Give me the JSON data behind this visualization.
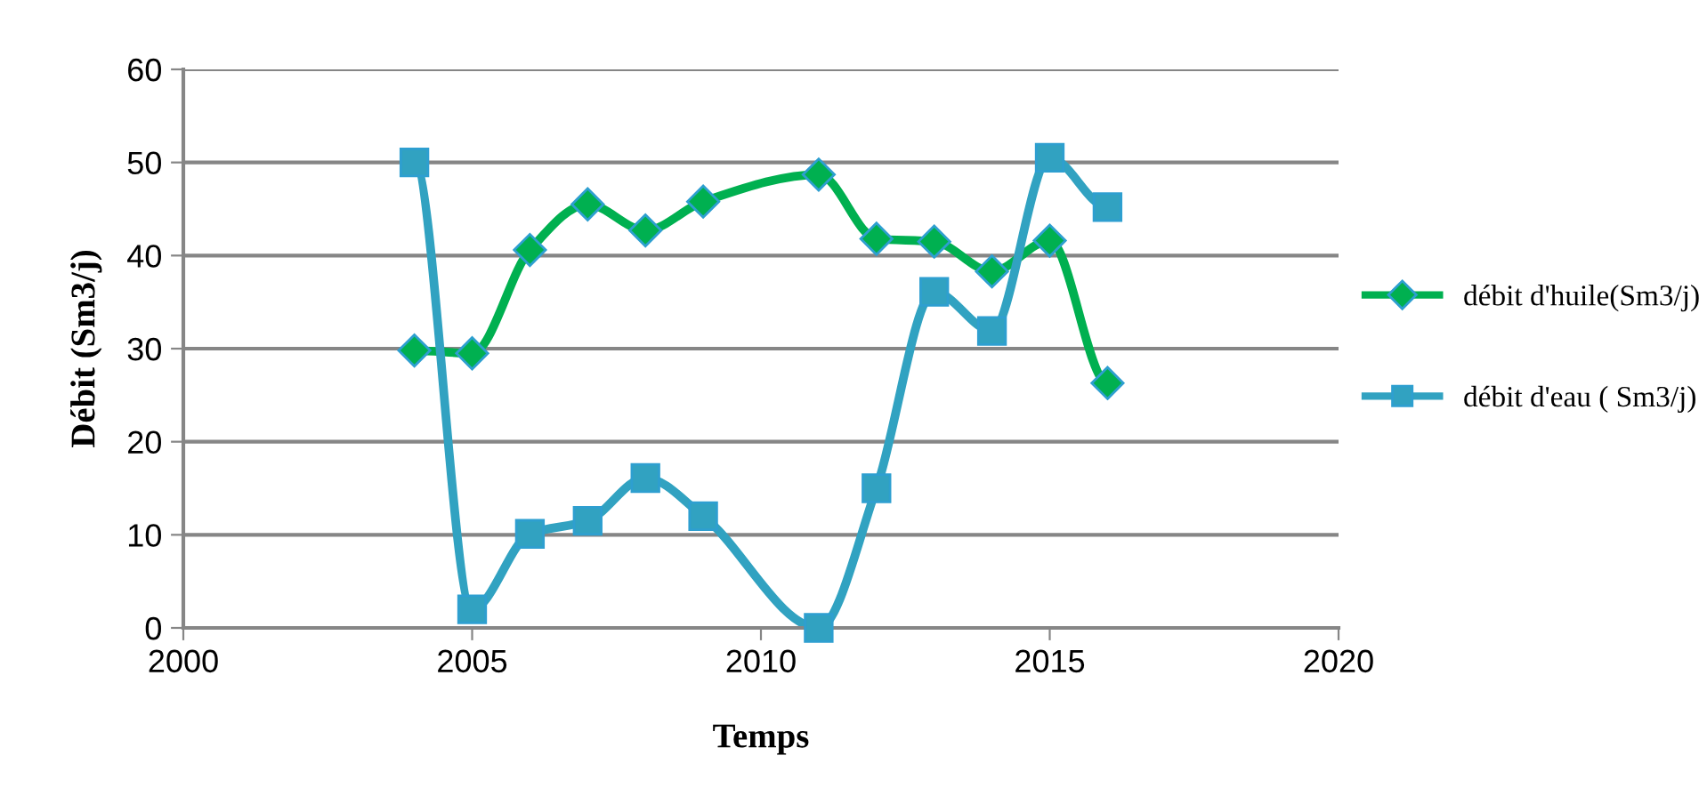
{
  "chart_data": {
    "type": "line",
    "xlabel": "Temps",
    "ylabel": "Débit (Sm3/j)",
    "xlim": [
      2000,
      2020
    ],
    "xticks": [
      2000,
      2005,
      2010,
      2015,
      2020
    ],
    "ylim": [
      0,
      60
    ],
    "yticks": [
      0,
      10,
      20,
      30,
      40,
      50,
      60
    ],
    "grid": "y",
    "legend": "right",
    "series": [
      {
        "name": "débit d'huile(Sm3/j)",
        "color": "#00b050",
        "marker": "diamond",
        "x": [
          2004,
          2005,
          2006,
          2007,
          2008,
          2009,
          2011,
          2012,
          2013,
          2014,
          2015,
          2016
        ],
        "values": [
          29.8,
          29.5,
          40.6,
          45.5,
          42.7,
          45.8,
          48.7,
          41.8,
          41.5,
          38.3,
          41.6,
          26.3
        ]
      },
      {
        "name": "débit d'eau ( Sm3/j)",
        "color": "#31a2c1",
        "marker": "square",
        "x": [
          2004,
          2005,
          2006,
          2007,
          2008,
          2009,
          2011,
          2012,
          2013,
          2014,
          2015,
          2016
        ],
        "values": [
          50,
          2,
          10.1,
          11.5,
          16.1,
          12,
          0,
          15,
          36.1,
          31.9,
          50.5,
          45.2
        ]
      }
    ]
  }
}
